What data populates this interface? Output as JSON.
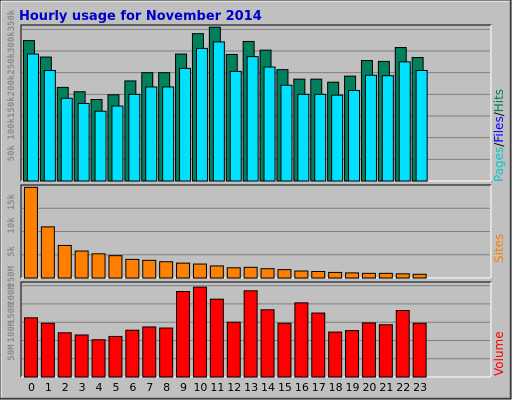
{
  "title": "Hourly usage for November 2014",
  "colors": {
    "background": "#c0c0c0",
    "title": "#0000cc",
    "hits": "#00805c",
    "files": "#00e0ff",
    "pages": "#00c8c8",
    "sites": "#ff8000",
    "volume": "#ff0000"
  },
  "chart_data": [
    {
      "type": "bar",
      "panel": "hits-files-pages",
      "categories": [
        "0",
        "1",
        "2",
        "3",
        "4",
        "5",
        "6",
        "7",
        "8",
        "9",
        "10",
        "11",
        "12",
        "13",
        "14",
        "15",
        "16",
        "17",
        "18",
        "19",
        "20",
        "21",
        "22",
        "23"
      ],
      "ylim": [
        0,
        360000
      ],
      "yticks": [
        50000,
        100000,
        150000,
        200000,
        250000,
        300000,
        350000
      ],
      "ytick_labels": [
        "50k",
        "100k",
        "150k",
        "200k",
        "250k",
        "300k",
        "350k"
      ],
      "series": [
        {
          "name": "Hits",
          "values": [
            324000,
            286000,
            216000,
            206000,
            188000,
            199000,
            231000,
            250000,
            250000,
            293000,
            340000,
            355000,
            292000,
            322000,
            302000,
            257000,
            235000,
            235000,
            228000,
            242000,
            278000,
            276000,
            308000,
            285000
          ]
        },
        {
          "name": "Files",
          "values": [
            293000,
            255000,
            191000,
            179000,
            161000,
            173000,
            200000,
            217000,
            217000,
            260000,
            306000,
            321000,
            253000,
            287000,
            263000,
            221000,
            200000,
            200000,
            198000,
            209000,
            244000,
            243000,
            275000,
            255000
          ]
        },
        {
          "name": "Pages",
          "values": [
            0,
            0,
            0,
            0,
            0,
            0,
            0,
            0,
            0,
            0,
            0,
            0,
            0,
            0,
            0,
            0,
            0,
            0,
            0,
            0,
            0,
            0,
            0,
            0
          ]
        }
      ]
    },
    {
      "type": "bar",
      "panel": "sites",
      "categories": [
        "0",
        "1",
        "2",
        "3",
        "4",
        "5",
        "6",
        "7",
        "8",
        "9",
        "10",
        "11",
        "12",
        "13",
        "14",
        "15",
        "16",
        "17",
        "18",
        "19",
        "20",
        "21",
        "22",
        "23"
      ],
      "ylim": [
        0,
        20000
      ],
      "yticks": [
        5000,
        10000,
        15000
      ],
      "ytick_labels": [
        "5k",
        "10k",
        "15k"
      ],
      "series": [
        {
          "name": "Sites",
          "values": [
            19500,
            11000,
            7000,
            5800,
            5200,
            4800,
            4000,
            3800,
            3500,
            3200,
            3000,
            2600,
            2200,
            2300,
            2000,
            1800,
            1500,
            1400,
            1200,
            1100,
            1000,
            1000,
            900,
            800
          ]
        }
      ]
    },
    {
      "type": "bar",
      "panel": "volume",
      "categories": [
        "0",
        "1",
        "2",
        "3",
        "4",
        "5",
        "6",
        "7",
        "8",
        "9",
        "10",
        "11",
        "12",
        "13",
        "14",
        "15",
        "16",
        "17",
        "18",
        "19",
        "20",
        "21",
        "22",
        "23"
      ],
      "ylim": [
        0,
        260
      ],
      "yticks": [
        50,
        100,
        150,
        200,
        250
      ],
      "ytick_labels": [
        "50M",
        "100M",
        "150M",
        "200M",
        "250M"
      ],
      "series": [
        {
          "name": "Volume",
          "values": [
            162,
            147,
            121,
            115,
            102,
            111,
            128,
            137,
            134,
            234,
            246,
            213,
            150,
            236,
            184,
            147,
            203,
            175,
            123,
            127,
            148,
            143,
            182,
            147
          ]
        }
      ]
    }
  ]
}
